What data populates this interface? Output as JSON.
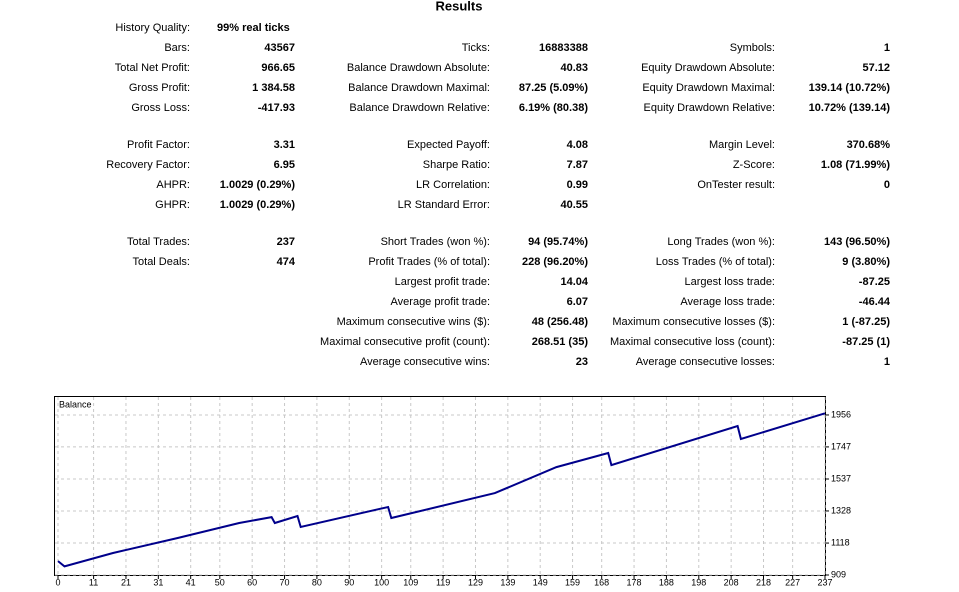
{
  "results": {
    "title": "Results",
    "sections": [
      [
        [
          "History Quality:",
          "99% real ticks",
          null,
          null,
          null,
          null
        ],
        [
          "Bars:",
          "43567",
          "Ticks:",
          "16883388",
          "Symbols:",
          "1"
        ],
        [
          "Total Net Profit:",
          "966.65",
          "Balance Drawdown Absolute:",
          "40.83",
          "Equity Drawdown Absolute:",
          "57.12"
        ],
        [
          "Gross Profit:",
          "1 384.58",
          "Balance Drawdown Maximal:",
          "87.25 (5.09%)",
          "Equity Drawdown Maximal:",
          "139.14 (10.72%)"
        ],
        [
          "Gross Loss:",
          "-417.93",
          "Balance Drawdown Relative:",
          "6.19% (80.38)",
          "Equity Drawdown Relative:",
          "10.72% (139.14)"
        ]
      ],
      [
        [
          "Profit Factor:",
          "3.31",
          "Expected Payoff:",
          "4.08",
          "Margin Level:",
          "370.68%"
        ],
        [
          "Recovery Factor:",
          "6.95",
          "Sharpe Ratio:",
          "7.87",
          "Z-Score:",
          "1.08 (71.99%)"
        ],
        [
          "AHPR:",
          "1.0029 (0.29%)",
          "LR Correlation:",
          "0.99",
          "OnTester result:",
          "0"
        ],
        [
          "GHPR:",
          "1.0029 (0.29%)",
          "LR Standard Error:",
          "40.55",
          null,
          null
        ]
      ],
      [
        [
          "Total Trades:",
          "237",
          "Short Trades (won %):",
          "94 (95.74%)",
          "Long Trades (won %):",
          "143 (96.50%)"
        ],
        [
          "Total Deals:",
          "474",
          "Profit Trades (% of total):",
          "228 (96.20%)",
          "Loss Trades (% of total):",
          "9 (3.80%)"
        ],
        [
          null,
          null,
          "Largest profit trade:",
          "14.04",
          "Largest loss trade:",
          "-87.25"
        ],
        [
          null,
          null,
          "Average profit trade:",
          "6.07",
          "Average loss trade:",
          "-46.44"
        ],
        [
          null,
          null,
          "Maximum consecutive wins ($):",
          "48 (256.48)",
          "Maximum consecutive losses ($):",
          "1 (-87.25)"
        ],
        [
          null,
          null,
          "Maximal consecutive profit (count):",
          "268.51 (35)",
          "Maximal consecutive loss (count):",
          "-87.25 (1)"
        ],
        [
          null,
          null,
          "Average consecutive wins:",
          "23",
          "Average consecutive losses:",
          "1"
        ]
      ]
    ]
  },
  "chart_data": {
    "type": "line",
    "title": "Balance",
    "color": "#00008b",
    "x": [
      0,
      2,
      17,
      37,
      56,
      66,
      67,
      74,
      75,
      102,
      103,
      135,
      154,
      170,
      171,
      210,
      211,
      237
    ],
    "values": [
      1000,
      965,
      1053,
      1151,
      1249,
      1288,
      1249,
      1295,
      1223,
      1354,
      1282,
      1445,
      1615,
      1707,
      1628,
      1884,
      1799,
      1967
    ],
    "xlim": [
      0,
      237
    ],
    "xticks": [
      0,
      11,
      21,
      31,
      41,
      50,
      60,
      70,
      80,
      90,
      100,
      109,
      119,
      129,
      139,
      149,
      159,
      168,
      178,
      188,
      198,
      208,
      218,
      227,
      237
    ],
    "ylim": [
      909,
      2067
    ],
    "yticks": [
      909,
      1118,
      1328,
      1537,
      1747,
      1956
    ],
    "grid": true
  }
}
